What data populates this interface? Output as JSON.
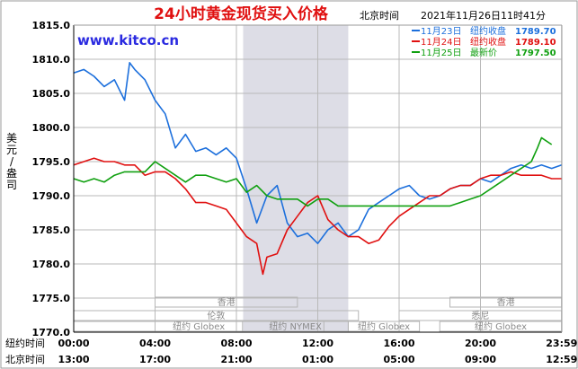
{
  "chart_data": {
    "type": "line",
    "title": "24小时黄金现货买入价格",
    "header_time_label": "北京时间",
    "header_datetime": "2021年11月26日11时41分",
    "watermark": "www.kitco.cn",
    "ylabel": "美元/盎司",
    "ylim": [
      1770,
      1815
    ],
    "yticks": [
      "1770.0",
      "1775.0",
      "1780.0",
      "1785.0",
      "1790.0",
      "1795.0",
      "1800.0",
      "1805.0",
      "1810.0",
      "1815.0"
    ],
    "x_row_labels": [
      "纽约时间",
      "北京时间"
    ],
    "xticks_ny": [
      "00:00",
      "04:00",
      "08:00",
      "12:00",
      "16:00",
      "20:00",
      "23:59"
    ],
    "xticks_bj": [
      "13:00",
      "17:00",
      "21:00",
      "01:00",
      "05:00",
      "09:00",
      "12:59"
    ],
    "legend": [
      {
        "name": "11月23日",
        "label": "纽约收盘",
        "value": "1789.70",
        "color": "#1c6fdc"
      },
      {
        "name": "11月24日",
        "label": "纽约收盘",
        "value": "1789.10",
        "color": "#e01010"
      },
      {
        "name": "11月25日",
        "label": "最新价",
        "value": "1797.50",
        "color": "#10a010"
      }
    ],
    "market_sessions": [
      {
        "name": "香港",
        "start": 4.0,
        "end": 11.0
      },
      {
        "name": "香港",
        "start": 18.5,
        "end": 23.99
      },
      {
        "name": "伦敦",
        "start": 0,
        "end": 14.0
      },
      {
        "name": "悉尼",
        "start": 16.0,
        "end": 23.99
      },
      {
        "name": "纽约 Globex",
        "start": 0,
        "end": 12.3
      },
      {
        "name": "纽约 NYMEX",
        "start": 8.3,
        "end": 13.5
      },
      {
        "name": "纽约 Globex",
        "start": 13.5,
        "end": 17.0
      },
      {
        "name": "纽约 Globex",
        "start": 18.0,
        "end": 23.99
      }
    ],
    "shaded_range": [
      8.33,
      13.5
    ],
    "series": [
      {
        "name": "11月23日",
        "color": "#1c6fdc",
        "x": [
          0,
          0.5,
          1,
          1.5,
          2,
          2.5,
          2.75,
          3,
          3.5,
          4,
          4.5,
          5,
          5.5,
          6,
          6.5,
          7,
          7.5,
          8,
          8.5,
          9,
          9.5,
          10,
          10.5,
          11,
          11.5,
          12,
          12.5,
          13,
          13.5,
          14,
          14.5,
          15,
          15.5,
          16,
          16.5,
          17,
          17.5,
          18,
          18.5,
          19,
          19.5,
          20,
          20.5,
          21,
          21.5,
          22,
          22.5,
          23,
          23.5,
          23.99
        ],
        "values": [
          1808,
          1808.5,
          1807.5,
          1806,
          1807,
          1804,
          1809.5,
          1808.5,
          1807,
          1804,
          1802,
          1797,
          1799,
          1796.5,
          1797,
          1796,
          1797,
          1795.5,
          1791,
          1786,
          1790,
          1791.5,
          1786,
          1784,
          1784.5,
          1783,
          1785,
          1786,
          1784,
          1785,
          1788,
          1789,
          1790,
          1791,
          1791.5,
          1790,
          1789.5,
          1790,
          1791,
          1791.5,
          1791.5,
          1792.5,
          1792,
          1793,
          1794,
          1794.5,
          1794,
          1794.5,
          1794,
          1794.5
        ]
      },
      {
        "name": "11月24日",
        "color": "#e01010",
        "x": [
          0,
          0.5,
          1,
          1.5,
          2,
          2.5,
          3,
          3.5,
          4,
          4.5,
          5,
          5.5,
          6,
          6.5,
          7,
          7.5,
          8,
          8.5,
          9,
          9.3,
          9.5,
          10,
          10.5,
          11,
          11.5,
          12,
          12.5,
          13,
          13.5,
          14,
          14.5,
          15,
          15.5,
          16,
          16.5,
          17,
          17.5,
          18,
          18.5,
          19,
          19.5,
          20,
          20.5,
          21,
          21.5,
          22,
          22.5,
          23,
          23.5,
          23.99
        ],
        "values": [
          1794.5,
          1795,
          1795.5,
          1795,
          1795,
          1794.5,
          1794.5,
          1793,
          1793.5,
          1793.5,
          1792.5,
          1791,
          1789,
          1789,
          1788.5,
          1788,
          1786,
          1784,
          1783,
          1778.5,
          1781,
          1781.5,
          1785,
          1787,
          1789,
          1790,
          1786.5,
          1785,
          1784,
          1784,
          1783,
          1783.5,
          1785.5,
          1787,
          1788,
          1789,
          1790,
          1790,
          1791,
          1791.5,
          1791.5,
          1792.5,
          1793,
          1793,
          1793.5,
          1793,
          1793,
          1793,
          1792.5,
          1792.5
        ]
      },
      {
        "name": "11月25日",
        "color": "#10a010",
        "x": [
          0,
          0.5,
          1,
          1.5,
          2,
          2.5,
          3,
          3.5,
          4,
          4.5,
          5,
          5.5,
          6,
          6.5,
          7,
          7.5,
          8,
          8.5,
          9,
          9.5,
          10,
          10.5,
          11,
          11.5,
          12,
          12.5,
          13,
          13.5,
          14,
          14.5,
          15,
          15.5,
          16,
          16.5,
          17,
          17.5,
          18,
          18.5,
          19,
          19.5,
          20,
          20.5,
          21,
          21.5,
          22,
          22.5,
          22.8,
          23,
          23.5
        ],
        "values": [
          1792.5,
          1792,
          1792.5,
          1792,
          1793,
          1793.5,
          1793.5,
          1793.5,
          1795,
          1794,
          1793,
          1792,
          1793,
          1793,
          1792.5,
          1792,
          1792.5,
          1790.5,
          1791.5,
          1790,
          1789.5,
          1789.5,
          1789.5,
          1788.5,
          1789.5,
          1789.5,
          1788.5,
          1788.5,
          1788.5,
          1788.5,
          1788.5,
          1788.5,
          1788.5,
          1788.5,
          1788.5,
          1788.5,
          1788.5,
          1788.5,
          1789,
          1789.5,
          1790,
          1791,
          1792,
          1793,
          1794,
          1795,
          1797,
          1798.5,
          1797.5
        ]
      }
    ]
  }
}
